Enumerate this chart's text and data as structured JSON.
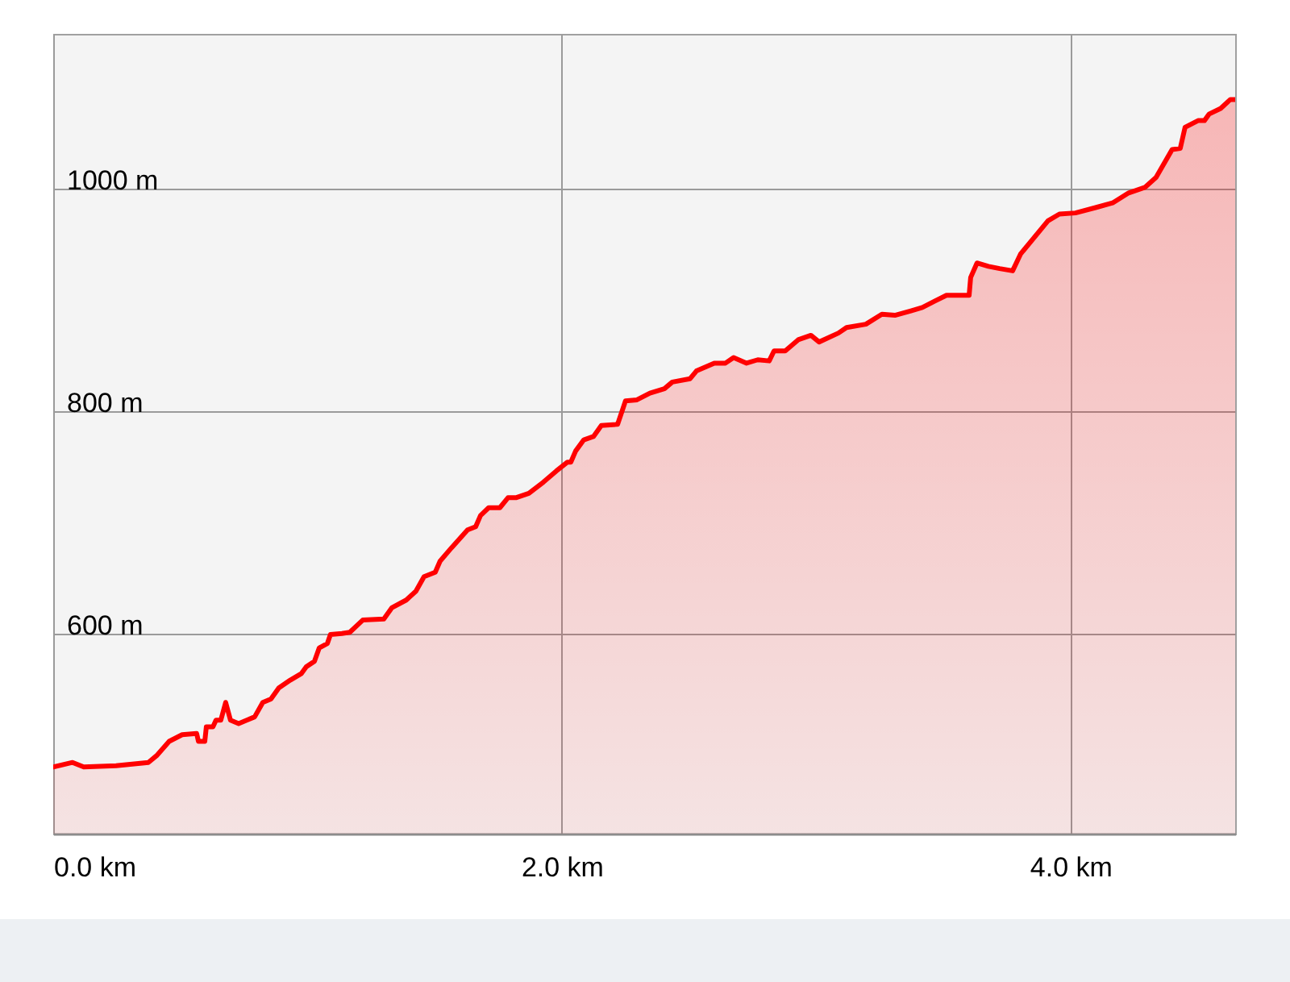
{
  "chart_data": {
    "type": "area",
    "x": [
      0,
      0.076,
      0.12,
      0.247,
      0.374,
      0.406,
      0.456,
      0.507,
      0.564,
      0.571,
      0.596,
      0.602,
      0.628,
      0.64,
      0.659,
      0.678,
      0.697,
      0.729,
      0.761,
      0.792,
      0.824,
      0.856,
      0.887,
      0.932,
      0.976,
      0.995,
      1.027,
      1.046,
      1.078,
      1.09,
      1.135,
      1.166,
      1.217,
      1.3,
      1.331,
      1.388,
      1.426,
      1.458,
      1.502,
      1.521,
      1.566,
      1.629,
      1.661,
      1.68,
      1.712,
      1.756,
      1.788,
      1.819,
      1.87,
      1.927,
      1.978,
      2.022,
      2.035,
      2.054,
      2.086,
      2.124,
      2.155,
      2.219,
      2.25,
      2.295,
      2.346,
      2.403,
      2.434,
      2.504,
      2.529,
      2.599,
      2.643,
      2.675,
      2.726,
      2.77,
      2.815,
      2.834,
      2.878,
      2.929,
      2.979,
      3.011,
      3.087,
      3.119,
      3.195,
      3.258,
      3.309,
      3.372,
      3.417,
      3.468,
      3.512,
      3.601,
      3.607,
      3.632,
      3.677,
      3.721,
      3.772,
      3.803,
      3.911,
      3.956,
      4.019,
      4.101,
      4.165,
      4.228,
      4.292,
      4.336,
      4.399,
      4.431,
      4.45,
      4.501,
      4.526,
      4.545,
      4.59,
      4.628,
      4.647
    ],
    "series": [
      {
        "color": "#ff0000",
        "values": [
          480,
          484,
          480,
          481,
          484,
          490,
          503,
          509,
          510,
          503,
          503,
          516,
          516,
          522,
          522,
          538,
          522,
          519,
          522,
          525,
          538,
          541,
          551,
          558,
          564,
          570,
          575,
          587,
          591,
          599,
          600,
          601,
          612,
          613,
          623,
          630,
          638,
          651,
          655,
          665,
          677,
          693,
          696,
          706,
          713,
          713,
          722,
          722,
          726,
          736,
          746,
          754,
          754,
          764,
          774,
          777,
          787,
          788,
          809,
          810,
          816,
          820,
          826,
          829,
          836,
          843,
          843,
          848,
          843,
          846,
          845,
          854,
          854,
          864,
          868,
          862,
          870,
          875,
          878,
          887,
          886,
          890,
          893,
          899,
          904,
          904,
          920,
          933,
          930,
          928,
          926,
          941,
          971,
          977,
          978,
          983,
          987,
          996,
          1001,
          1010,
          1035,
          1036,
          1055,
          1061,
          1061,
          1067,
          1072,
          1080,
          1080
        ]
      }
    ],
    "xlim": [
      0,
      4.647
    ],
    "ylim": [
      420,
      1139
    ],
    "xticks": [
      {
        "value": 0,
        "label": "0.0 km"
      },
      {
        "value": 2,
        "label": "2.0 km"
      },
      {
        "value": 4,
        "label": "4.0 km"
      }
    ],
    "yticks": [
      {
        "value": 600,
        "label": "600 m"
      },
      {
        "value": 800,
        "label": "800 m"
      },
      {
        "value": 1000,
        "label": "1000 m"
      }
    ],
    "grid": true
  }
}
